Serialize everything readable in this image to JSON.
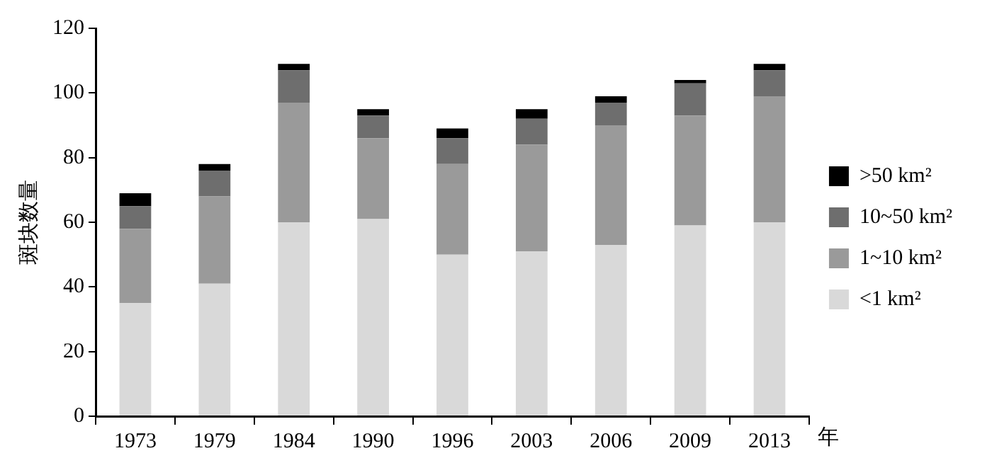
{
  "chart_data": {
    "type": "bar",
    "ylabel": "斑块数量",
    "xlabel": "年",
    "stacked": true,
    "legend": "right",
    "grid": false,
    "categories": [
      "1973",
      "1979",
      "1984",
      "1990",
      "1996",
      "2003",
      "2006",
      "2009",
      "2013"
    ],
    "series": [
      {
        "name": "<1 km²",
        "color": "#d9d9d9",
        "values": [
          35,
          41,
          60,
          61,
          50,
          51,
          53,
          59,
          60
        ]
      },
      {
        "name": "1~10 km²",
        "color": "#9a9a9a",
        "values": [
          23,
          27,
          37,
          25,
          28,
          33,
          37,
          34,
          39
        ]
      },
      {
        "name": "10~50 km²",
        "color": "#6e6e6e",
        "values": [
          7,
          8,
          10,
          7,
          8,
          8,
          7,
          10,
          8
        ]
      },
      {
        "name": ">50 km²",
        "color": "#000000",
        "values": [
          4,
          2,
          2,
          2,
          3,
          3,
          2,
          1,
          2
        ]
      }
    ],
    "ylim": [
      0,
      120
    ],
    "yticks": [
      0,
      20,
      40,
      60,
      80,
      100,
      120
    ]
  }
}
